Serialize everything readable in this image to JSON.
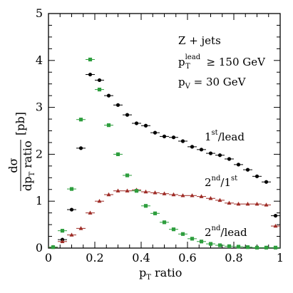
{
  "chart_data": {
    "type": "scatter",
    "xlim": [
      0,
      1
    ],
    "ylim": [
      0,
      5
    ],
    "x_ticks": [
      "0",
      "0.2",
      "0.4",
      "0.6",
      "0.8",
      "1"
    ],
    "y_ticks": [
      "0",
      "1",
      "2",
      "3",
      "4",
      "5"
    ],
    "xlabel": {
      "main": "p",
      "sub": "T",
      "rest": " ratio"
    },
    "ylabel": {
      "numerator_main": "dσ",
      "denominator_main": "dp",
      "denominator_sub": "T",
      "denominator_rest": " ratio",
      "unit": "[pb]"
    },
    "info": {
      "line1": "Z + jets",
      "line2_main": "p",
      "line2_sup": "lead",
      "line2_sub": "T",
      "line2_rest": " ≥ 150 GeV",
      "line3_main": "p",
      "line3_sub": "V",
      "line3_rest": " =  30 GeV"
    },
    "series": [
      {
        "label": {
          "sup1": "st",
          "base1": "1",
          "mid": "/lead",
          "base2": "",
          "sup2": ""
        },
        "color": "#000000",
        "marker": "circle",
        "x": [
          0.06,
          0.1,
          0.14,
          0.18,
          0.22,
          0.26,
          0.3,
          0.34,
          0.38,
          0.42,
          0.46,
          0.5,
          0.54,
          0.58,
          0.62,
          0.66,
          0.7,
          0.74,
          0.78,
          0.82,
          0.86,
          0.9,
          0.94,
          0.98
        ],
        "y": [
          0.18,
          0.82,
          2.13,
          3.7,
          3.58,
          3.25,
          3.05,
          2.84,
          2.66,
          2.61,
          2.46,
          2.38,
          2.36,
          2.28,
          2.16,
          2.1,
          2.02,
          1.98,
          1.9,
          1.78,
          1.67,
          1.53,
          1.41,
          0.69
        ]
      },
      {
        "label": {
          "base1": "2",
          "sup1": "nd",
          "mid": "/1",
          "sup2": "st"
        },
        "color": "#9e2b25",
        "marker": "triangle",
        "x": [
          0.02,
          0.06,
          0.1,
          0.14,
          0.18,
          0.22,
          0.26,
          0.3,
          0.34,
          0.38,
          0.42,
          0.46,
          0.5,
          0.54,
          0.58,
          0.62,
          0.66,
          0.7,
          0.74,
          0.78,
          0.82,
          0.86,
          0.9,
          0.94,
          0.98
        ],
        "y": [
          0.02,
          0.14,
          0.28,
          0.42,
          0.75,
          1.0,
          1.14,
          1.22,
          1.22,
          1.24,
          1.2,
          1.18,
          1.16,
          1.14,
          1.12,
          1.12,
          1.1,
          1.06,
          1.02,
          0.96,
          0.94,
          0.94,
          0.94,
          0.92,
          0.47
        ]
      },
      {
        "label": {
          "base1": "2",
          "sup1": "nd",
          "mid": "/lead",
          "sup2": ""
        },
        "color": "#2e9e3e",
        "marker": "square",
        "x": [
          0.02,
          0.06,
          0.1,
          0.14,
          0.18,
          0.22,
          0.26,
          0.3,
          0.34,
          0.38,
          0.42,
          0.46,
          0.5,
          0.54,
          0.58,
          0.62,
          0.66,
          0.7,
          0.74,
          0.78,
          0.82,
          0.86,
          0.9,
          0.94,
          0.98
        ],
        "y": [
          0.02,
          0.37,
          1.26,
          2.74,
          4.02,
          3.38,
          2.62,
          2.0,
          1.55,
          1.22,
          0.9,
          0.74,
          0.55,
          0.4,
          0.3,
          0.2,
          0.14,
          0.09,
          0.06,
          0.04,
          0.03,
          0.02,
          0.01,
          0.01,
          0.01
        ]
      }
    ]
  }
}
